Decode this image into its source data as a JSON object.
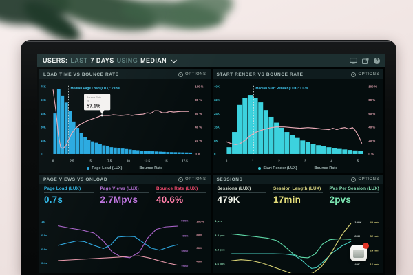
{
  "topbar": {
    "title_parts": [
      {
        "text": "USERS:"
      },
      {
        "text": "LAST"
      },
      {
        "text": "7 DAYS"
      },
      {
        "text": "USING"
      },
      {
        "text": "MEDIAN"
      }
    ],
    "help_glyph": "?"
  },
  "panels": [
    {
      "title": "LOAD TIME VS BOUNCE RATE",
      "options_label": "OPTIONS"
    },
    {
      "title": "START RENDER VS BOUNCE RATE",
      "options_label": "OPTIONS"
    },
    {
      "title": "PAGE VIEWS VS ONLOAD",
      "options_label": "OPTIONS",
      "metrics": [
        {
          "label": "Page Load (LUX)",
          "value": "0.7s",
          "color": "#2fb9ea"
        },
        {
          "label": "Page Views (LUX)",
          "value": "2.7Mpvs",
          "color": "#bd74de"
        },
        {
          "label": "Bounce Rate (LUX)",
          "value": "40.6%",
          "color": "#fb4d71",
          "value_color": "#ff7fa9"
        }
      ]
    },
    {
      "title": "SESSIONS",
      "options_label": "OPTIONS",
      "metrics": [
        {
          "label": "Sessions (LUX)",
          "value": "479K",
          "color": "#dfe5d8",
          "value_color": "#eef0e6"
        },
        {
          "label": "Session Length (LUX)",
          "value": "17min",
          "color": "#ddd883",
          "value_color": "#e3dc7a"
        },
        {
          "label": "PVs Per Session (LUX)",
          "value": "2pvs",
          "color": "#8ce7bb",
          "value_color": "#7ce6b2"
        }
      ]
    }
  ],
  "chart_data": [
    {
      "type": "bar",
      "title": "LOAD TIME VS BOUNCE RATE",
      "xlabel": "Page Load time (s)",
      "xlim": [
        0,
        18.5
      ],
      "x_tick_vals": [
        0,
        2.5,
        5,
        7.5,
        10,
        12.5,
        15,
        17.5
      ],
      "x_tick_labels": [
        "0",
        "2.5",
        "5",
        "7.5",
        "10",
        "12.5",
        "15",
        "17.5"
      ],
      "ylim_k": [
        0,
        75
      ],
      "left_ticks": [
        "75K",
        "60K",
        "45K",
        "30K",
        "15K",
        "0"
      ],
      "left_tick_color": "#35b4e0",
      "right_ticks": [
        "100 %",
        "80 %",
        "60 %",
        "40 %",
        "20 %",
        "0 %"
      ],
      "right_tick_color": "#e2a3b0",
      "bar_color": "#28a9e0",
      "bars": {
        "x0": 0,
        "dx": 0.5,
        "values_k": [
          45,
          72,
          65,
          57,
          48,
          36,
          29,
          23,
          19,
          16,
          14,
          12.5,
          11,
          9.5,
          8.5,
          7.5,
          7,
          6.5,
          6,
          5.5,
          5,
          4.5,
          4.2,
          3.8,
          3.5,
          3.2,
          3,
          2.8,
          2.6,
          2.4,
          2.2,
          2.1,
          2,
          1.9,
          1.8,
          1.7,
          1.6
        ]
      },
      "line": {
        "name": "Bounce Rate",
        "color": "#e9aab6",
        "points": [
          [
            0,
            95
          ],
          [
            0.4,
            62
          ],
          [
            0.7,
            28
          ],
          [
            1,
            10
          ],
          [
            1.3,
            8
          ],
          [
            1.7,
            12
          ],
          [
            2.1,
            22
          ],
          [
            2.5,
            31
          ],
          [
            3,
            38
          ],
          [
            3.5,
            43
          ],
          [
            4,
            46
          ],
          [
            4.5,
            49
          ],
          [
            5,
            51
          ],
          [
            5.5,
            53
          ],
          [
            6,
            55
          ],
          [
            6.5,
            57.1
          ],
          [
            7.5,
            57
          ],
          [
            8,
            58
          ],
          [
            9,
            57
          ],
          [
            10,
            58
          ],
          [
            10.5,
            57
          ],
          [
            11,
            58
          ],
          [
            12,
            59
          ],
          [
            12.5,
            61
          ],
          [
            13,
            60
          ],
          [
            13.5,
            64
          ],
          [
            14,
            64
          ],
          [
            14.5,
            61
          ],
          [
            15,
            61
          ],
          [
            15.5,
            63
          ],
          [
            16,
            62
          ],
          [
            17,
            63
          ],
          [
            18,
            63
          ]
        ]
      },
      "median": {
        "x": 2.05,
        "label": "Median Page Load (LUX): 2.05s"
      },
      "tooltip": {
        "x": 6.5,
        "pct": 57.1,
        "title": "Bounce Rate",
        "unit": "%",
        "value": "57.1%"
      },
      "legend": [
        {
          "label": "Page Load (LUX)",
          "color": "#28a9e0",
          "marker": "dot"
        },
        {
          "label": "Bounce Rate",
          "color": "#e9aab6",
          "marker": "dash"
        }
      ]
    },
    {
      "type": "bar",
      "title": "START RENDER VS BOUNCE RATE",
      "xlabel": "Start Render time (s)",
      "xlim": [
        0,
        5.3
      ],
      "x_tick_vals": [
        0,
        1,
        2,
        3,
        4,
        5
      ],
      "x_tick_labels": [
        "0",
        "1",
        "2",
        "3",
        "4",
        "5"
      ],
      "ylim_k": [
        0,
        40
      ],
      "left_ticks": [
        "40K",
        "32K",
        "24K",
        "16K",
        "8K",
        "0"
      ],
      "left_tick_color": "#3cc9da",
      "right_ticks": [
        "100 %",
        "80 %",
        "60 %",
        "40 %",
        "20 %",
        "0 %"
      ],
      "right_tick_color": "#e2a3b0",
      "bar_color": "#3cd2de",
      "bars": {
        "x0": 0,
        "dx": 0.2,
        "values_k": [
          4,
          13,
          29,
          33,
          35,
          33,
          30.5,
          26,
          22,
          18.5,
          15.5,
          13,
          11,
          9.5,
          8,
          7,
          6,
          5.2,
          4.5,
          4,
          3.5,
          3,
          2.7,
          2.4,
          2.1,
          1.9
        ]
      },
      "line": {
        "name": "Bounce Rate",
        "color": "#e9aab6",
        "points": [
          [
            0,
            18
          ],
          [
            0.2,
            15
          ],
          [
            0.35,
            14
          ],
          [
            0.5,
            15
          ],
          [
            0.7,
            20
          ],
          [
            0.9,
            27
          ],
          [
            1.1,
            32
          ],
          [
            1.3,
            35
          ],
          [
            1.5,
            37
          ],
          [
            1.7,
            39
          ],
          [
            1.9,
            40
          ],
          [
            2.2,
            40
          ],
          [
            2.5,
            39
          ],
          [
            2.8,
            38
          ],
          [
            3.1,
            39
          ],
          [
            3.4,
            38
          ],
          [
            3.6,
            37
          ],
          [
            3.9,
            36
          ],
          [
            4.05,
            38
          ],
          [
            4.2,
            36
          ],
          [
            4.35,
            38
          ],
          [
            4.5,
            39
          ],
          [
            4.65,
            37
          ],
          [
            4.8,
            39
          ],
          [
            4.9,
            35
          ],
          [
            5.05,
            25
          ],
          [
            5.15,
            16
          ]
        ]
      },
      "median": {
        "x": 1.03,
        "label": "Median Start Render (LUX): 1.03s"
      },
      "legend": [
        {
          "label": "Start Render (LUX)",
          "color": "#3cd2de",
          "marker": "dot"
        },
        {
          "label": "Bounce Rate",
          "color": "#e9aab6",
          "marker": "dash"
        }
      ]
    },
    {
      "type": "line",
      "title": "PAGE VIEWS VS ONLOAD",
      "axes": {
        "left": {
          "color": "#35b4e0",
          "range": [
            0.3,
            1.07
          ],
          "ticks": [
            {
              "v": 1,
              "label": "1s"
            },
            {
              "v": 0.8,
              "label": "0.8s"
            },
            {
              "v": 0.6,
              "label": "0.6s"
            },
            {
              "v": 0.4,
              "label": "0.4s"
            }
          ]
        },
        "right1": {
          "color": "#b476d6",
          "range": [
            175,
            525
          ],
          "ticks": [
            {
              "v": 500,
              "label": "500K"
            },
            {
              "v": 400,
              "label": "400K"
            },
            {
              "v": 300,
              "label": "300K"
            },
            {
              "v": 200,
              "label": "200K"
            }
          ]
        },
        "right2": {
          "color": "#e89cab",
          "range": [
            27,
            107
          ],
          "ticks": [
            {
              "v": 100,
              "label": "100%"
            },
            {
              "v": 80,
              "label": "80%"
            },
            {
              "v": 60,
              "label": "60%"
            },
            {
              "v": 40,
              "label": "40%"
            }
          ]
        }
      },
      "series": [
        {
          "name": "Page Views (LUX)",
          "axis": "right1",
          "color": "#a963c9",
          "points": [
            [
              0,
              465
            ],
            [
              0.1,
              450
            ],
            [
              0.2,
              437
            ],
            [
              0.3,
              418
            ],
            [
              0.38,
              365
            ],
            [
              0.45,
              295
            ],
            [
              0.52,
              263
            ],
            [
              0.6,
              255
            ],
            [
              0.68,
              292
            ],
            [
              0.75,
              385
            ],
            [
              0.82,
              442
            ],
            [
              0.9,
              458
            ],
            [
              1,
              463
            ]
          ]
        },
        {
          "name": "Page Load (LUX)",
          "axis": "left",
          "color": "#2fa8e0",
          "points": [
            [
              0,
              0.655
            ],
            [
              0.08,
              0.69
            ],
            [
              0.16,
              0.72
            ],
            [
              0.22,
              0.71
            ],
            [
              0.3,
              0.655
            ],
            [
              0.38,
              0.61
            ],
            [
              0.44,
              0.66
            ],
            [
              0.5,
              0.775
            ],
            [
              0.58,
              0.785
            ],
            [
              0.64,
              0.78
            ],
            [
              0.7,
              0.71
            ],
            [
              0.78,
              0.615
            ],
            [
              0.85,
              0.585
            ],
            [
              0.92,
              0.63
            ],
            [
              1,
              0.665
            ]
          ]
        },
        {
          "name": "Bounce Rate (LUX)",
          "axis": "right2",
          "color": "#e597a9",
          "points": [
            [
              0,
              41
            ],
            [
              0.1,
              42
            ],
            [
              0.2,
              43
            ],
            [
              0.3,
              44
            ],
            [
              0.4,
              45
            ],
            [
              0.5,
              46
            ],
            [
              0.6,
              47.5
            ],
            [
              0.68,
              48
            ],
            [
              0.76,
              45
            ],
            [
              0.84,
              41
            ],
            [
              0.92,
              37
            ],
            [
              1,
              34
            ]
          ]
        }
      ]
    },
    {
      "type": "line",
      "title": "SESSIONS",
      "axes": {
        "left": {
          "color": "#8fdfb6",
          "range": [
            1.25,
            4.25
          ],
          "ticks": [
            {
              "v": 4,
              "label": "4 pvs"
            },
            {
              "v": 3.2,
              "label": "3.2 pvs"
            },
            {
              "v": 2.4,
              "label": "2.4 pvs"
            },
            {
              "v": 1.6,
              "label": "1.6 pvs"
            }
          ]
        },
        "right1": {
          "color": "#cdd6cf",
          "range": [
            32,
            108
          ],
          "ticks": [
            {
              "v": 100,
              "label": "100K"
            },
            {
              "v": 80,
              "label": "80K"
            },
            {
              "v": 60,
              "label": "60K"
            },
            {
              "v": 40,
              "label": "40K"
            }
          ]
        },
        "right2": {
          "color": "#ddd67e",
          "range": [
            12.8,
            43.2
          ],
          "ticks": [
            {
              "v": 40,
              "label": "40 min"
            },
            {
              "v": 32,
              "label": "32 min"
            },
            {
              "v": 24,
              "label": "24 min"
            },
            {
              "v": 16,
              "label": "16 min"
            }
          ]
        }
      },
      "series": [
        {
          "name": "PVs Per Session (LUX)",
          "axis": "left",
          "color": "#5fd9a8",
          "points": [
            [
              0,
              3.27
            ],
            [
              0.1,
              3.2
            ],
            [
              0.2,
              3.12
            ],
            [
              0.3,
              3.04
            ],
            [
              0.38,
              2.9
            ],
            [
              0.45,
              2.55
            ],
            [
              0.52,
              2.12
            ],
            [
              0.58,
              1.96
            ],
            [
              0.64,
              1.93
            ],
            [
              0.7,
              2.15
            ],
            [
              0.76,
              2.7
            ],
            [
              0.82,
              2.95
            ],
            [
              0.9,
              3.0
            ],
            [
              1,
              2.97
            ]
          ]
        },
        {
          "name": "Sessions (LUX)",
          "axis": "right1",
          "color": "#49cfc0",
          "points": [
            [
              0,
              55
            ],
            [
              0.35,
              55
            ],
            [
              0.45,
              54.5
            ],
            [
              0.52,
              53
            ],
            [
              0.58,
              47
            ],
            [
              0.63,
              39
            ],
            [
              0.67,
              34
            ],
            [
              0.71,
              35
            ],
            [
              0.77,
              44
            ],
            [
              0.84,
              56
            ],
            [
              0.92,
              66
            ],
            [
              1,
              73
            ]
          ]
        },
        {
          "name": "Session Length (LUX)",
          "axis": "right2",
          "color": "#d8d274",
          "points": [
            [
              0,
              18
            ],
            [
              0.08,
              18.6
            ],
            [
              0.16,
              18.2
            ],
            [
              0.25,
              16.8
            ],
            [
              0.32,
              15.2
            ],
            [
              0.4,
              13.2
            ],
            [
              0.5,
              10.8
            ],
            [
              0.6,
              9.8
            ],
            [
              0.68,
              11
            ],
            [
              0.75,
              14.5
            ],
            [
              0.82,
              21
            ],
            [
              0.88,
              28
            ],
            [
              0.94,
              34.5
            ],
            [
              1,
              39.5
            ]
          ]
        }
      ]
    }
  ]
}
